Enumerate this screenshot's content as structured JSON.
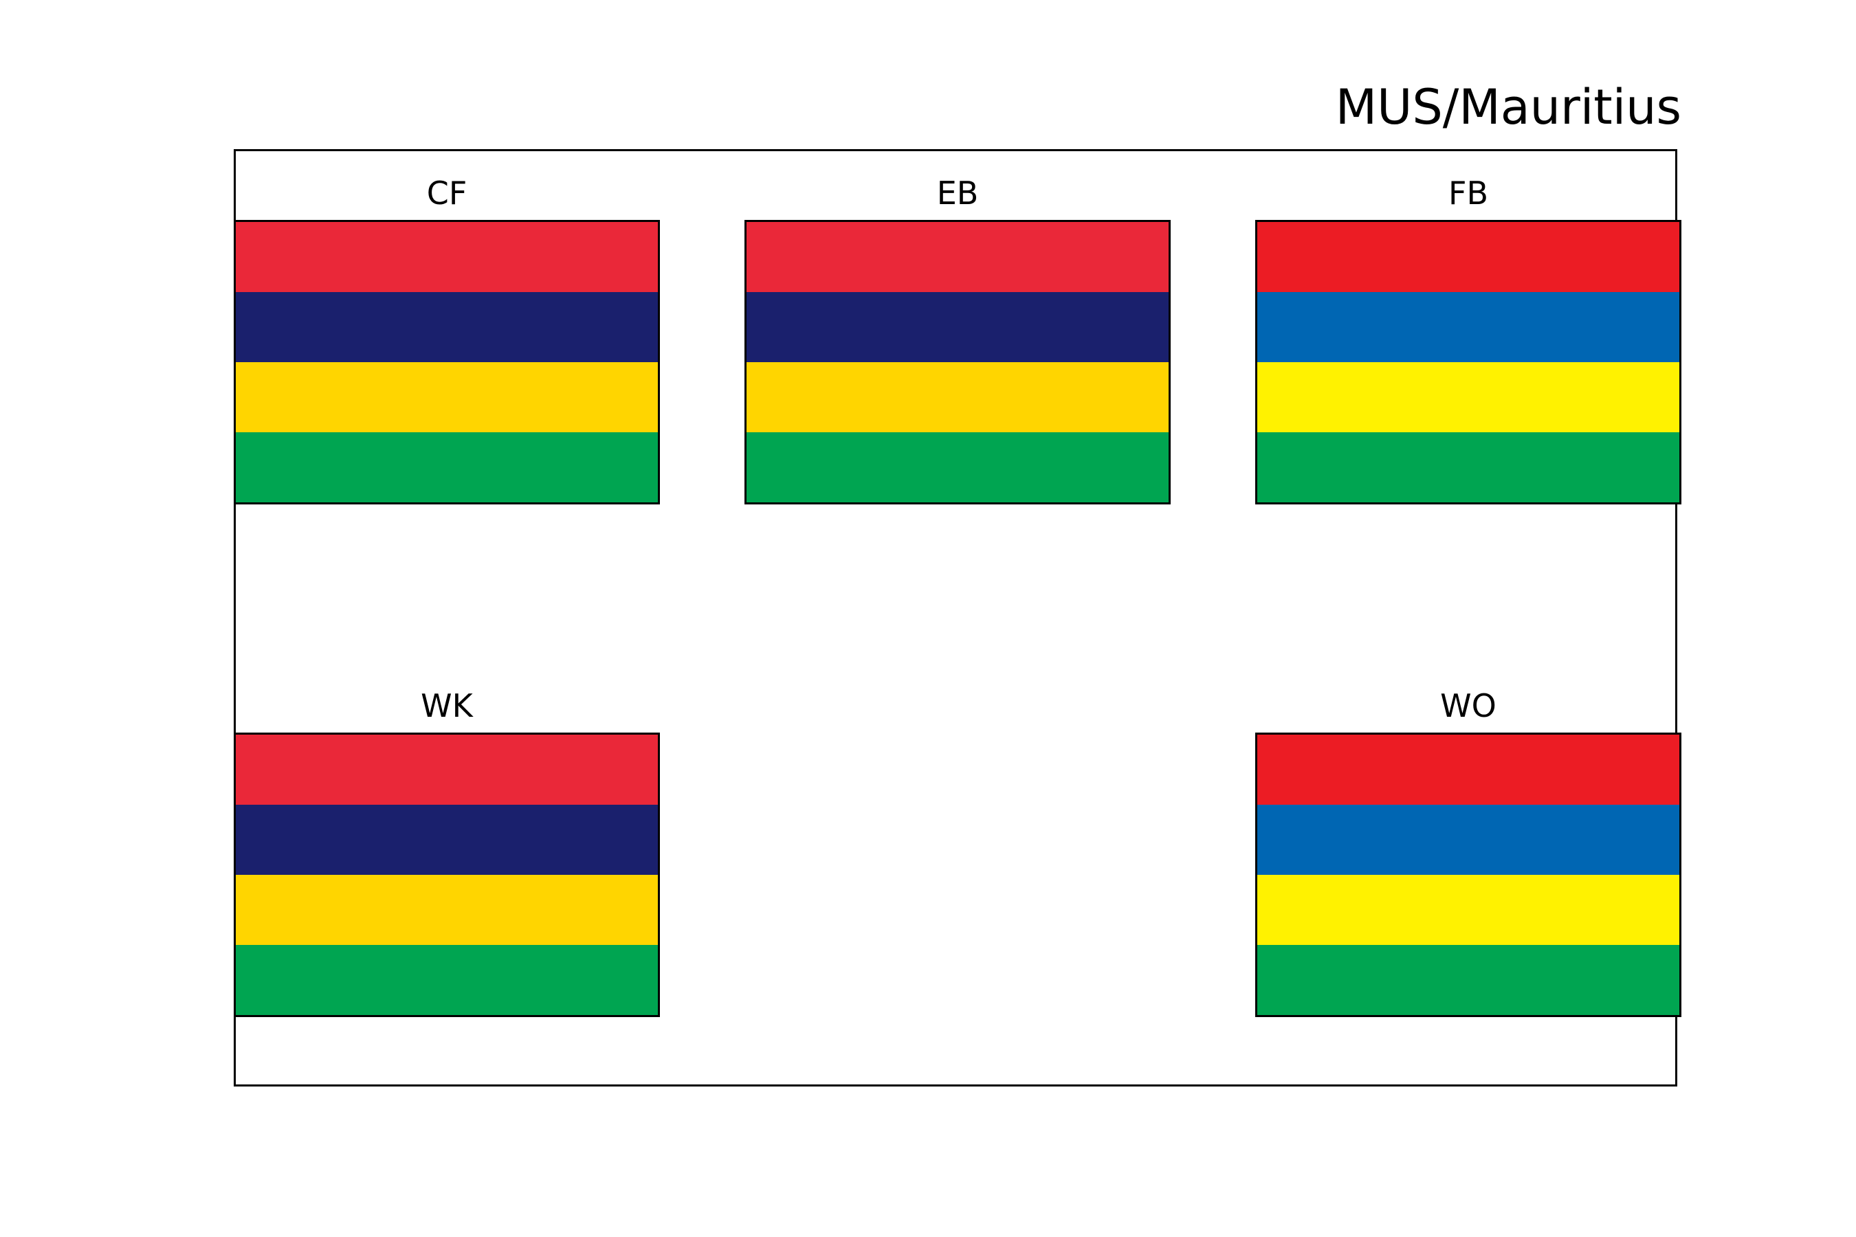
{
  "title": "MUS/Mauritius",
  "flags": [
    {
      "label": "CF",
      "stripes": [
        "#EA2839",
        "#1A206D",
        "#FFD500",
        "#00A551"
      ]
    },
    {
      "label": "EB",
      "stripes": [
        "#EA2839",
        "#1A206D",
        "#FFD500",
        "#00A551"
      ]
    },
    {
      "label": "FB",
      "stripes": [
        "#EC1C24",
        "#0066B3",
        "#FFF200",
        "#00A551"
      ]
    },
    {
      "label": "WK",
      "stripes": [
        "#EA2839",
        "#1A206D",
        "#FFD500",
        "#00A551"
      ]
    },
    {
      "label": "WO",
      "stripes": [
        "#EC1C24",
        "#0066B3",
        "#FFF200",
        "#00A551"
      ]
    }
  ]
}
